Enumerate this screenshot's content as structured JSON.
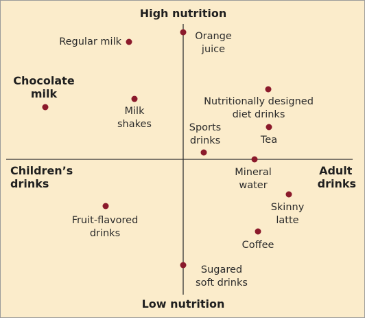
{
  "axes": {
    "top": "High nutrition",
    "bottom": "Low nutrition",
    "left": [
      "Children’s",
      "drinks"
    ],
    "right": [
      "Adult",
      "drinks"
    ]
  },
  "colors": {
    "dot": "#8b1a2b",
    "background": "#fbeccb",
    "axis": "#333333"
  },
  "points": [
    {
      "name": "regular-milk",
      "lines": [
        "Regular milk"
      ]
    },
    {
      "name": "orange-juice",
      "lines": [
        "Orange",
        "juice"
      ]
    },
    {
      "name": "chocolate-milk",
      "lines": [
        "Chocolate",
        "milk"
      ]
    },
    {
      "name": "milk-shakes",
      "lines": [
        "Milk",
        "shakes"
      ]
    },
    {
      "name": "nutritionally-designed-diet-drinks",
      "lines": [
        "Nutritionally designed",
        "diet drinks"
      ]
    },
    {
      "name": "sports-drinks",
      "lines": [
        "Sports",
        "drinks"
      ]
    },
    {
      "name": "tea",
      "lines": [
        "Tea"
      ]
    },
    {
      "name": "mineral-water",
      "lines": [
        "Mineral",
        "water"
      ]
    },
    {
      "name": "fruit-flavored-drinks",
      "lines": [
        "Fruit-flavored",
        "drinks"
      ]
    },
    {
      "name": "skinny-latte",
      "lines": [
        "Skinny",
        "latte"
      ]
    },
    {
      "name": "coffee",
      "lines": [
        "Coffee"
      ]
    },
    {
      "name": "sugared-soft-drinks",
      "lines": [
        "Sugared",
        "soft drinks"
      ]
    }
  ]
}
